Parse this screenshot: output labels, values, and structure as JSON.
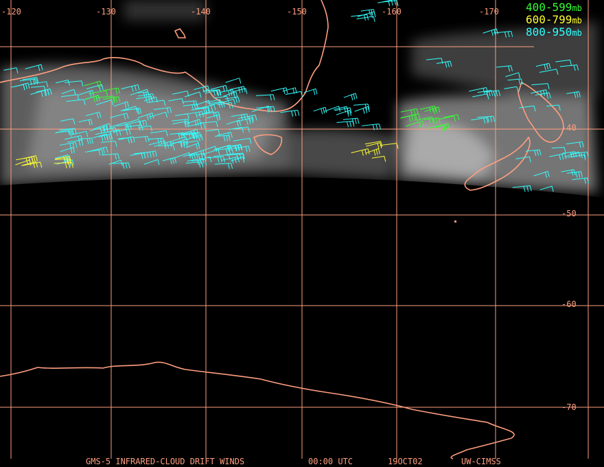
{
  "map": {
    "lon_labels": [
      "-120",
      "-130",
      "-140",
      "-150",
      "-160",
      "-170"
    ],
    "lat_labels": [
      "-40",
      "-50",
      "-60",
      "-70"
    ],
    "legend": [
      {
        "range": "400-599",
        "unit": "mb",
        "color": "#33ff33"
      },
      {
        "range": "600-799",
        "unit": "mb",
        "color": "#ffff33"
      },
      {
        "range": "800-950",
        "unit": "mb",
        "color": "#33ffff"
      }
    ],
    "footer": [
      "GMS-5 INFRARED-CLOUD DRIFT WINDS",
      "00:00 UTC",
      "19OCT02",
      "UW-CIMSS"
    ]
  }
}
